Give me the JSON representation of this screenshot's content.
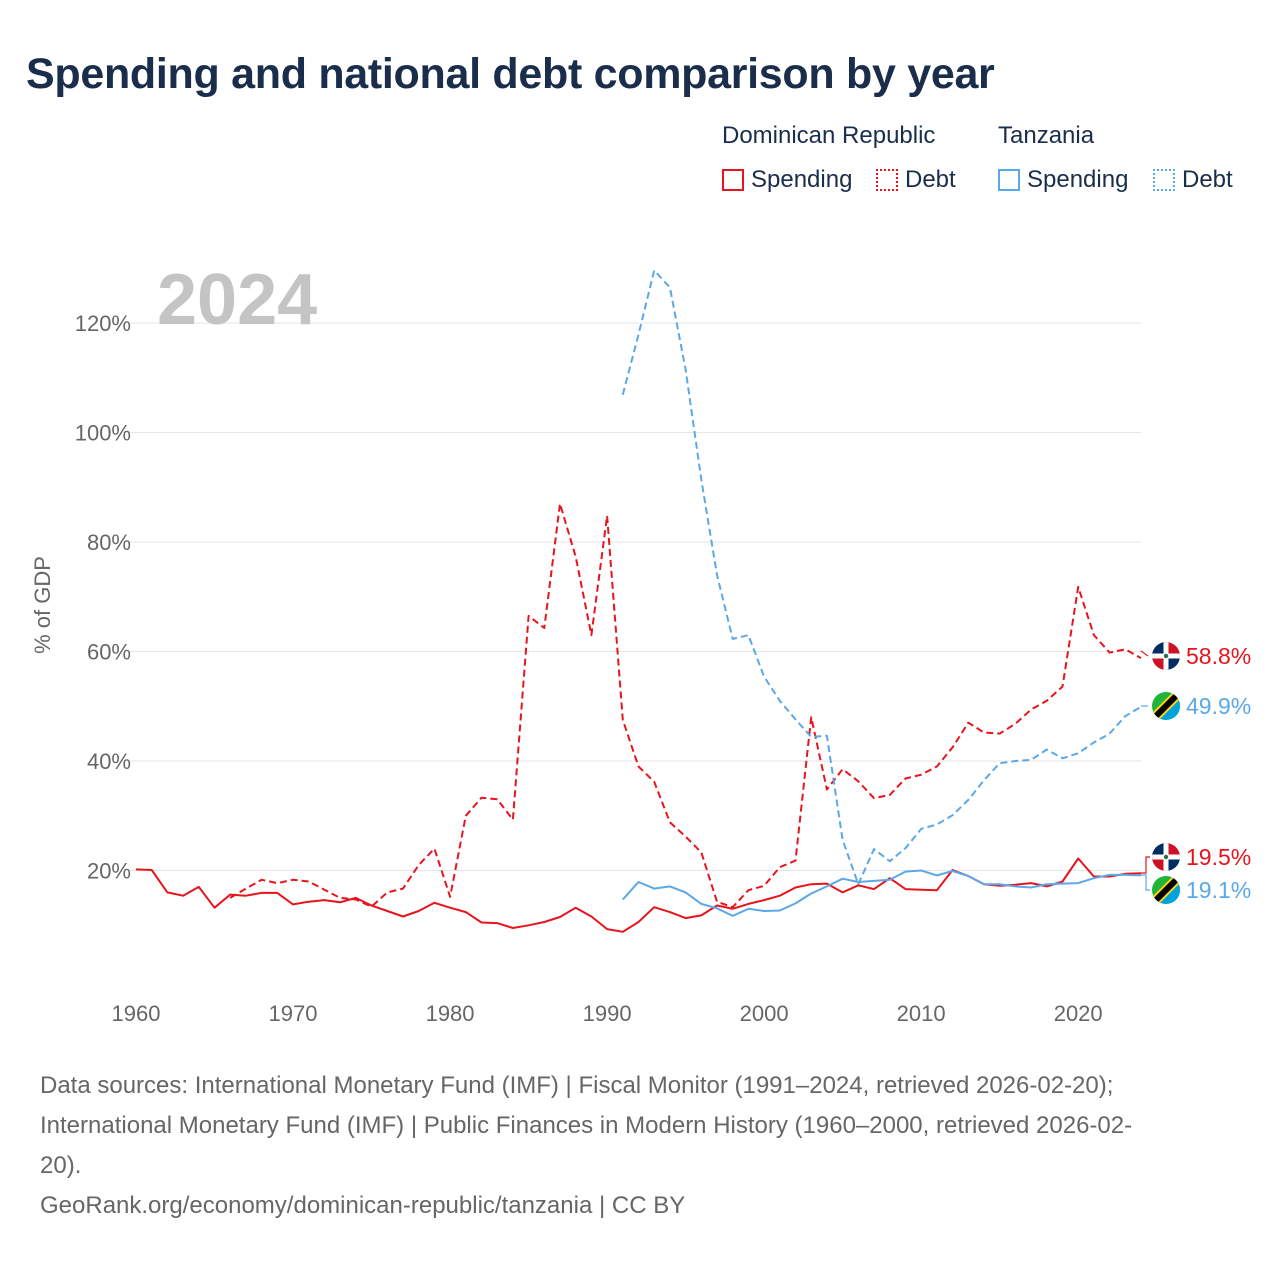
{
  "title": "Spending and national debt comparison by year",
  "year_label": "2024",
  "legend": {
    "groups": [
      {
        "name": "Dominican Republic",
        "items": [
          "Spending",
          "Debt"
        ]
      },
      {
        "name": "Tanzania",
        "items": [
          "Spending",
          "Debt"
        ]
      }
    ]
  },
  "colors": {
    "dominican_republic": "#e8141c",
    "tanzania": "#5ba8e8",
    "grid": "#e6e6e6",
    "axis_text": "#666666",
    "year_watermark": "#c4c4c4"
  },
  "end_labels": {
    "dr_debt": "58.8%",
    "tz_debt": "49.9%",
    "dr_spending": "19.5%",
    "tz_spending": "19.1%"
  },
  "flags": {
    "dominican_republic": "dominican-republic-flag-icon",
    "tanzania": "tanzania-flag-icon"
  },
  "chart_data": {
    "type": "line",
    "title": "Spending and national debt comparison by year",
    "xlabel": "",
    "ylabel": "% of GDP",
    "xlim": [
      1960,
      2024
    ],
    "ylim": [
      0,
      130
    ],
    "x_ticks": [
      1960,
      1970,
      1980,
      1990,
      2000,
      2010,
      2020
    ],
    "y_ticks": [
      20,
      40,
      60,
      80,
      100,
      120
    ],
    "y_tick_labels": [
      "20%",
      "40%",
      "60%",
      "80%",
      "100%",
      "120%"
    ],
    "series": [
      {
        "name": "Dominican Republic Spending",
        "style": "solid",
        "color": "#e8141c",
        "points": [
          [
            1960,
            20.2
          ],
          [
            1961,
            20.1
          ],
          [
            1962,
            16.0
          ],
          [
            1963,
            15.4
          ],
          [
            1964,
            17.0
          ],
          [
            1965,
            13.2
          ],
          [
            1966,
            15.6
          ],
          [
            1967,
            15.4
          ],
          [
            1968,
            15.9
          ],
          [
            1969,
            15.9
          ],
          [
            1970,
            13.8
          ],
          [
            1971,
            14.3
          ],
          [
            1972,
            14.6
          ],
          [
            1973,
            14.2
          ],
          [
            1974,
            15.0
          ],
          [
            1975,
            13.6
          ],
          [
            1976,
            12.6
          ],
          [
            1977,
            11.6
          ],
          [
            1978,
            12.6
          ],
          [
            1979,
            14.1
          ],
          [
            1980,
            13.2
          ],
          [
            1981,
            12.4
          ],
          [
            1982,
            10.5
          ],
          [
            1983,
            10.4
          ],
          [
            1984,
            9.5
          ],
          [
            1985,
            10.0
          ],
          [
            1986,
            10.6
          ],
          [
            1987,
            11.5
          ],
          [
            1988,
            13.2
          ],
          [
            1989,
            11.6
          ],
          [
            1990,
            9.3
          ],
          [
            1991,
            8.8
          ],
          [
            1992,
            10.6
          ],
          [
            1993,
            13.3
          ],
          [
            1994,
            12.4
          ],
          [
            1995,
            11.3
          ],
          [
            1996,
            11.8
          ],
          [
            1997,
            13.6
          ],
          [
            1998,
            13.0
          ],
          [
            1999,
            13.9
          ],
          [
            2000,
            14.6
          ],
          [
            2001,
            15.4
          ],
          [
            2002,
            16.9
          ],
          [
            2003,
            17.5
          ],
          [
            2004,
            17.6
          ],
          [
            2005,
            16.0
          ],
          [
            2006,
            17.3
          ],
          [
            2007,
            16.6
          ],
          [
            2008,
            18.6
          ],
          [
            2009,
            16.6
          ],
          [
            2010,
            16.5
          ],
          [
            2011,
            16.4
          ],
          [
            2012,
            20.1
          ],
          [
            2013,
            19.0
          ],
          [
            2014,
            17.5
          ],
          [
            2015,
            17.2
          ],
          [
            2016,
            17.4
          ],
          [
            2017,
            17.7
          ],
          [
            2018,
            17.1
          ],
          [
            2019,
            18.0
          ],
          [
            2020,
            22.2
          ],
          [
            2021,
            18.9
          ],
          [
            2022,
            18.9
          ],
          [
            2023,
            19.4
          ],
          [
            2024,
            19.5
          ]
        ]
      },
      {
        "name": "Dominican Republic Debt",
        "style": "dashed",
        "color": "#e8141c",
        "points": [
          [
            1966,
            15.0
          ],
          [
            1967,
            16.7
          ],
          [
            1968,
            18.3
          ],
          [
            1969,
            17.7
          ],
          [
            1970,
            18.3
          ],
          [
            1971,
            18.0
          ],
          [
            1972,
            16.5
          ],
          [
            1973,
            15.0
          ],
          [
            1974,
            14.7
          ],
          [
            1975,
            13.4
          ],
          [
            1976,
            16.0
          ],
          [
            1977,
            16.7
          ],
          [
            1978,
            21.0
          ],
          [
            1979,
            24.0
          ],
          [
            1980,
            15.2
          ],
          [
            1981,
            30.0
          ],
          [
            1982,
            33.3
          ],
          [
            1983,
            33.0
          ],
          [
            1984,
            29.3
          ],
          [
            1985,
            66.5
          ],
          [
            1986,
            64.3
          ],
          [
            1987,
            87.0
          ],
          [
            1988,
            77.3
          ],
          [
            1989,
            63.0
          ],
          [
            1990,
            84.8
          ],
          [
            1991,
            47.5
          ],
          [
            1992,
            39.0
          ],
          [
            1993,
            36.2
          ],
          [
            1994,
            28.8
          ],
          [
            1995,
            26.2
          ],
          [
            1996,
            23.3
          ],
          [
            1997,
            14.3
          ],
          [
            1998,
            13.3
          ],
          [
            1999,
            16.4
          ],
          [
            2000,
            17.2
          ],
          [
            2001,
            20.6
          ],
          [
            2002,
            21.8
          ],
          [
            2003,
            48.0
          ],
          [
            2004,
            34.8
          ],
          [
            2005,
            38.5
          ],
          [
            2006,
            36.3
          ],
          [
            2007,
            33.2
          ],
          [
            2008,
            33.8
          ],
          [
            2009,
            36.8
          ],
          [
            2010,
            37.5
          ],
          [
            2011,
            39.0
          ],
          [
            2012,
            42.5
          ],
          [
            2013,
            47.0
          ],
          [
            2014,
            45.2
          ],
          [
            2015,
            45.0
          ],
          [
            2016,
            46.8
          ],
          [
            2017,
            49.4
          ],
          [
            2018,
            51.0
          ],
          [
            2019,
            53.6
          ],
          [
            2020,
            71.8
          ],
          [
            2021,
            63.0
          ],
          [
            2022,
            59.8
          ],
          [
            2023,
            60.4
          ],
          [
            2024,
            58.8
          ]
        ]
      },
      {
        "name": "Tanzania Spending",
        "style": "solid",
        "color": "#5ba8e8",
        "points": [
          [
            1991,
            14.7
          ],
          [
            1992,
            17.9
          ],
          [
            1993,
            16.7
          ],
          [
            1994,
            17.1
          ],
          [
            1995,
            16.0
          ],
          [
            1996,
            13.9
          ],
          [
            1997,
            13.1
          ],
          [
            1998,
            11.7
          ],
          [
            1999,
            13.0
          ],
          [
            2000,
            12.6
          ],
          [
            2001,
            12.7
          ],
          [
            2002,
            14.0
          ],
          [
            2003,
            15.8
          ],
          [
            2004,
            17.1
          ],
          [
            2005,
            18.5
          ],
          [
            2006,
            17.9
          ],
          [
            2007,
            18.1
          ],
          [
            2008,
            18.3
          ],
          [
            2009,
            19.8
          ],
          [
            2010,
            20.0
          ],
          [
            2011,
            19.1
          ],
          [
            2012,
            19.9
          ],
          [
            2013,
            19.0
          ],
          [
            2014,
            17.5
          ],
          [
            2015,
            17.5
          ],
          [
            2016,
            17.1
          ],
          [
            2017,
            16.9
          ],
          [
            2018,
            17.5
          ],
          [
            2019,
            17.6
          ],
          [
            2020,
            17.7
          ],
          [
            2021,
            18.6
          ],
          [
            2022,
            19.2
          ],
          [
            2023,
            19.2
          ],
          [
            2024,
            19.1
          ]
        ]
      },
      {
        "name": "Tanzania Debt",
        "style": "dashed",
        "color": "#5ba8e8",
        "points": [
          [
            1991,
            106.9
          ],
          [
            1992,
            117.9
          ],
          [
            1993,
            129.6
          ],
          [
            1994,
            126.5
          ],
          [
            1995,
            111.5
          ],
          [
            1996,
            91.4
          ],
          [
            1997,
            74.0
          ],
          [
            1998,
            62.3
          ],
          [
            1999,
            63.0
          ],
          [
            2000,
            55.4
          ],
          [
            2001,
            51.0
          ],
          [
            2002,
            47.6
          ],
          [
            2003,
            44.4
          ],
          [
            2004,
            44.6
          ],
          [
            2005,
            25.6
          ],
          [
            2006,
            17.5
          ],
          [
            2007,
            23.9
          ],
          [
            2008,
            21.7
          ],
          [
            2009,
            24.1
          ],
          [
            2010,
            27.6
          ],
          [
            2011,
            28.4
          ],
          [
            2012,
            30.1
          ],
          [
            2013,
            32.9
          ],
          [
            2014,
            36.5
          ],
          [
            2015,
            39.6
          ],
          [
            2016,
            40.0
          ],
          [
            2017,
            40.2
          ],
          [
            2018,
            42.1
          ],
          [
            2019,
            40.5
          ],
          [
            2020,
            41.4
          ],
          [
            2021,
            43.4
          ],
          [
            2022,
            45.0
          ],
          [
            2023,
            48.2
          ],
          [
            2024,
            49.9
          ]
        ]
      }
    ]
  },
  "footer": {
    "sources_line1": "Data sources: International Monetary Fund (IMF) | Fiscal Monitor (1991–2024, retrieved 2026-02-20);",
    "sources_line2": "International Monetary Fund (IMF) | Public Finances in Modern History (1960–2000, retrieved 2026-02-",
    "sources_line3": "20).",
    "attribution": "GeoRank.org/economy/dominican-republic/tanzania | CC BY"
  }
}
